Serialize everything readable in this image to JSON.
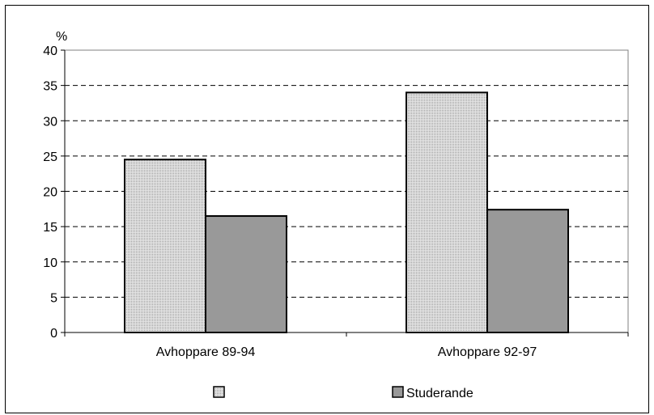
{
  "chart_data": {
    "type": "bar",
    "title": "",
    "xlabel": "",
    "ylabel": "%",
    "categories": [
      "Avhoppare 89-94",
      "Avhoppare 92-97"
    ],
    "ylim": [
      0,
      40
    ],
    "yticks": [
      0,
      5,
      10,
      15,
      20,
      25,
      30,
      35,
      40
    ],
    "grid": true,
    "legend_position": "bottom",
    "series": [
      {
        "name": "",
        "values": [
          24.5,
          34.0
        ],
        "color": "#d8d8d8",
        "pattern": "dotted"
      },
      {
        "name": "Studerande",
        "values": [
          16.5,
          17.4
        ],
        "color": "#999999"
      }
    ]
  }
}
